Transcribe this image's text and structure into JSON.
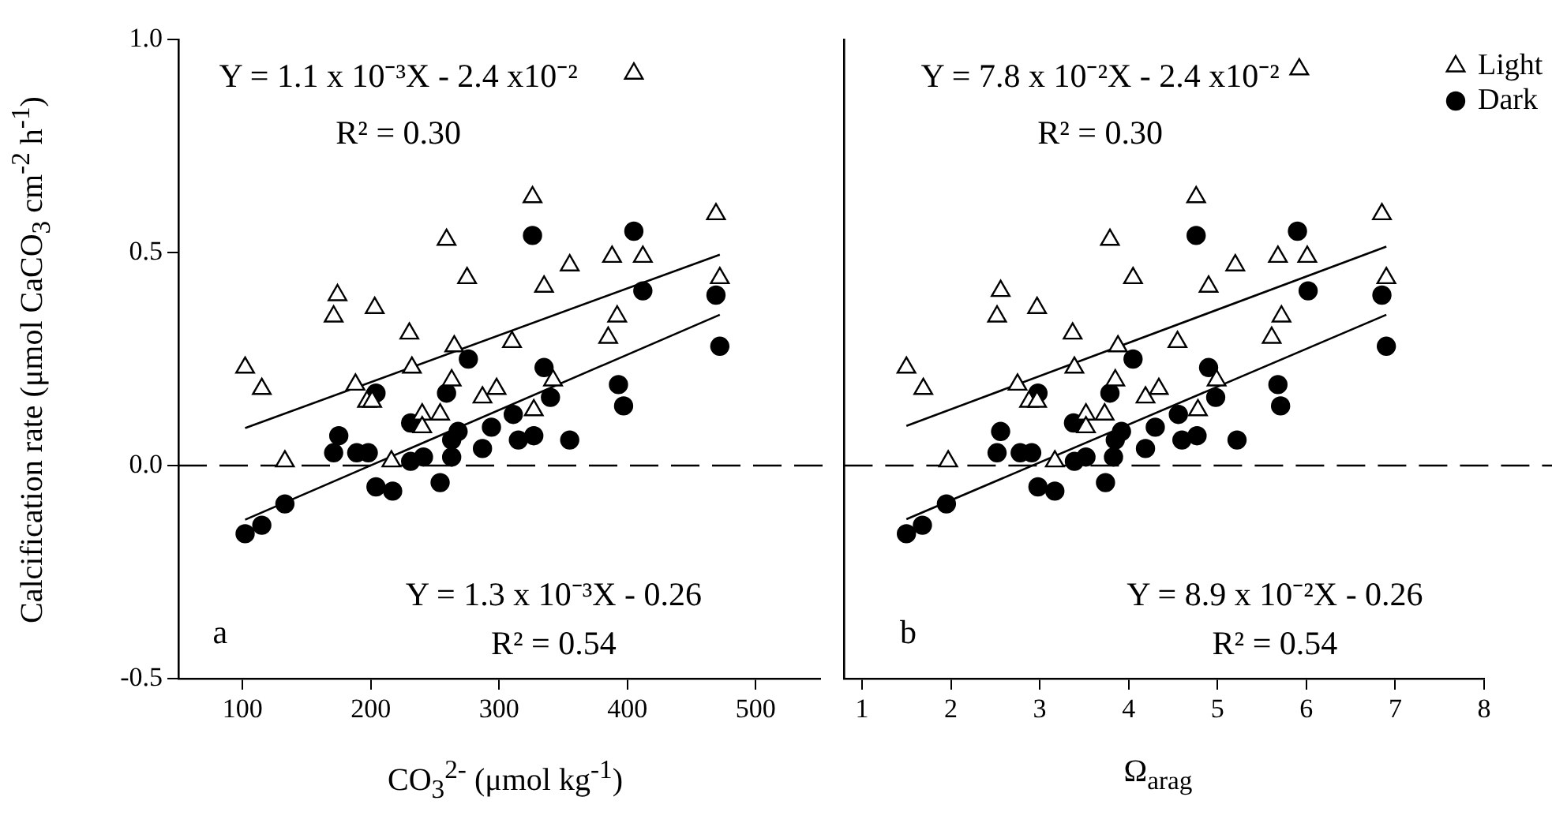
{
  "chart_data": [
    {
      "type": "scatter",
      "xlabel": "CO$_{3}$$^{2-}$ (μmol kg$^{-1}$)",
      "ylabel": "Calcification rate (μmol CaCO$_{3}$ cm$^{-2}$ h$^{-1}$)",
      "xlim": [
        50,
        550
      ],
      "xticks": [
        100,
        200,
        300,
        400,
        500
      ],
      "ylim": [
        -0.5,
        1.0
      ],
      "yticks": [
        {
          "value": -0.5,
          "label": "-0.5"
        },
        {
          "value": 0,
          "label": "0.0"
        },
        {
          "value": 0.5,
          "label": "0.5"
        },
        {
          "value": 1.0,
          "label": "1.0"
        }
      ],
      "ref_lines": [
        {
          "axis": "y",
          "value": 0,
          "line_style": "dashed",
          "color": "#000000"
        }
      ],
      "annotations": [
        "Y = 1.1 x 10⁻³X - 2.4 x10⁻²",
        "R² = 0.30",
        "Y = 1.3 x 10⁻³X - 0.26",
        "R² = 0.54",
        "a"
      ],
      "series": [
        {
          "type": "scatter",
          "marker": "triangle",
          "color": "#000000",
          "x": [
            405,
            326,
            469,
            259,
            275,
            335,
            355,
            388,
            412,
            472,
            174,
            171,
            203,
            392,
            385,
            230,
            265,
            310,
            102,
            115,
            188,
            232,
            197,
            201,
            263,
            287,
            298,
            342,
            240,
            254,
            240,
            327,
            133,
            216
          ],
          "values": [
            0.92,
            0.63,
            0.59,
            0.53,
            0.44,
            0.42,
            0.47,
            0.49,
            0.49,
            0.44,
            0.4,
            0.35,
            0.37,
            0.35,
            0.3,
            0.31,
            0.28,
            0.29,
            0.23,
            0.18,
            0.19,
            0.23,
            0.15,
            0.15,
            0.2,
            0.16,
            0.18,
            0.2,
            0.12,
            0.12,
            0.09,
            0.13,
            0.01,
            0.01
          ]
        },
        {
          "type": "scatter",
          "marker": "circle",
          "color": "#000000",
          "x": [
            326,
            405,
            412,
            469,
            472,
            276,
            335,
            393,
            397,
            340,
            204,
            259,
            231,
            268,
            263,
            263,
            175,
            171,
            189,
            198,
            231,
            241,
            287,
            294,
            311,
            315,
            327,
            355,
            204,
            217,
            254,
            133,
            115,
            102
          ],
          "values": [
            0.54,
            0.55,
            0.41,
            0.4,
            0.28,
            0.25,
            0.23,
            0.19,
            0.14,
            0.16,
            0.17,
            0.17,
            0.1,
            0.08,
            0.06,
            0.02,
            0.07,
            0.03,
            0.03,
            0.03,
            0.01,
            0.02,
            0.04,
            0.09,
            0.12,
            0.06,
            0.07,
            0.06,
            -0.05,
            -0.06,
            -0.04,
            -0.09,
            -0.14,
            -0.16
          ]
        },
        {
          "type": "line",
          "marker": "none",
          "color": "#000000",
          "x": [
            102,
            472
          ],
          "values": [
            0.088,
            0.495
          ]
        },
        {
          "type": "line",
          "marker": "none",
          "color": "#000000",
          "x": [
            102,
            472
          ],
          "values": [
            -0.127,
            0.354
          ]
        }
      ]
    },
    {
      "type": "scatter",
      "xlabel": "Ω$_{arag}$",
      "tick_labels": "x",
      "legend": "top right",
      "xlim": [
        0.8,
        8
      ],
      "xticks": [
        1,
        2,
        3,
        4,
        5,
        6,
        7,
        8
      ],
      "ylim": [
        -0.5,
        1.0
      ],
      "ref_lines": [
        {
          "axis": "y",
          "value": 0,
          "line_style": "dashed",
          "color": "#000000"
        }
      ],
      "annotations": [
        "Y = 7.8 x 10⁻²X - 2.4 x10⁻²",
        "R² = 0.30",
        "Y = 8.9 x 10⁻²X - 0.26",
        "R² = 0.54",
        "b"
      ],
      "series": [
        {
          "name": "Light",
          "type": "scatter",
          "marker": "triangle",
          "color": "#000000",
          "x": [
            5.92,
            4.76,
            6.85,
            3.79,
            4.05,
            4.9,
            5.2,
            5.68,
            6.01,
            6.9,
            2.56,
            2.52,
            2.97,
            5.72,
            5.61,
            3.37,
            3.88,
            4.55,
            1.5,
            1.69,
            2.75,
            3.39,
            2.88,
            2.97,
            3.85,
            4.19,
            4.34,
            4.99,
            3.52,
            3.73,
            3.52,
            4.78,
            1.97,
            3.17
          ],
          "values": [
            0.93,
            0.63,
            0.59,
            0.53,
            0.44,
            0.42,
            0.47,
            0.49,
            0.49,
            0.44,
            0.41,
            0.35,
            0.37,
            0.35,
            0.3,
            0.31,
            0.28,
            0.29,
            0.23,
            0.18,
            0.19,
            0.23,
            0.15,
            0.15,
            0.2,
            0.16,
            0.18,
            0.2,
            0.12,
            0.12,
            0.09,
            0.13,
            0.01,
            0.01
          ]
        },
        {
          "name": "Dark",
          "type": "scatter",
          "marker": "circle",
          "color": "#000000",
          "x": [
            4.76,
            5.9,
            6.02,
            6.85,
            6.9,
            4.05,
            4.9,
            5.68,
            5.71,
            4.98,
            2.98,
            3.79,
            3.38,
            3.92,
            3.85,
            3.83,
            2.56,
            2.52,
            2.78,
            2.91,
            3.39,
            3.52,
            4.19,
            4.3,
            4.56,
            4.6,
            4.77,
            5.22,
            2.98,
            3.17,
            3.74,
            1.95,
            1.68,
            1.5
          ],
          "values": [
            0.54,
            0.55,
            0.41,
            0.4,
            0.28,
            0.25,
            0.23,
            0.19,
            0.14,
            0.16,
            0.17,
            0.17,
            0.1,
            0.08,
            0.06,
            0.02,
            0.08,
            0.03,
            0.03,
            0.03,
            0.01,
            0.02,
            0.04,
            0.09,
            0.12,
            0.06,
            0.07,
            0.06,
            -0.05,
            -0.06,
            -0.04,
            -0.09,
            -0.14,
            -0.16
          ]
        },
        {
          "type": "line",
          "marker": "none",
          "color": "#000000",
          "x": [
            1.5,
            6.9
          ],
          "values": [
            0.093,
            0.514
          ]
        },
        {
          "type": "line",
          "marker": "none",
          "color": "#000000",
          "x": [
            1.5,
            6.9
          ],
          "values": [
            -0.126,
            0.354
          ]
        }
      ]
    }
  ]
}
